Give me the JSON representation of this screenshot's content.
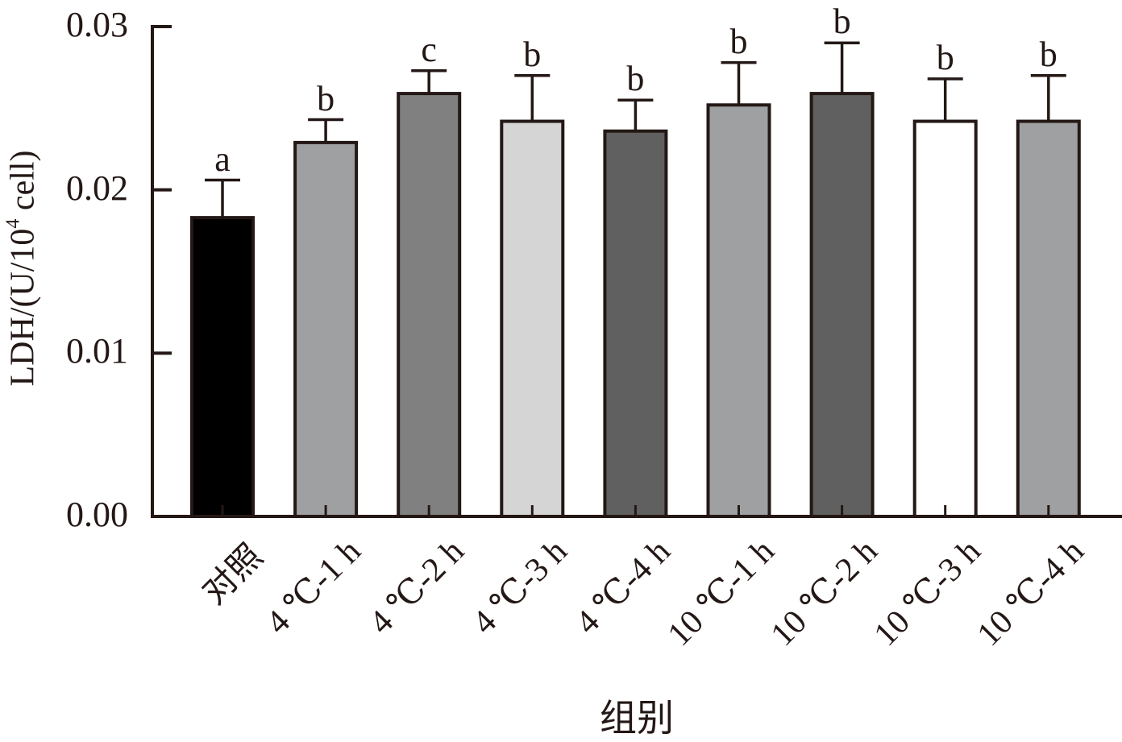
{
  "chart_data": {
    "type": "bar",
    "title": "",
    "xlabel": "组别",
    "ylabel": "LDH/(U/10^4 cell)",
    "ylabel_parts": {
      "prefix": "LDH/(U/10",
      "sup": "4",
      "suffix": " cell)"
    },
    "ylim": [
      0,
      0.03
    ],
    "yticks": [
      "0.00",
      "0.01",
      "0.02",
      "0.03"
    ],
    "grid": false,
    "legend": "none",
    "categories": [
      "对照",
      "4 ℃-1 h",
      "4 ℃-2 h",
      "4 ℃-3 h",
      "4 ℃-4 h",
      "10 ℃-1 h",
      "10 ℃-2 h",
      "10 ℃-3 h",
      "10 ℃-4 h"
    ],
    "values": [
      0.0183,
      0.0229,
      0.0259,
      0.0242,
      0.0236,
      0.0252,
      0.0259,
      0.0242,
      0.0242
    ],
    "error_upper": [
      0.0206,
      0.0243,
      0.0273,
      0.027,
      0.0255,
      0.0278,
      0.029,
      0.0268,
      0.027
    ],
    "significance_letters": [
      "a",
      "b",
      "c",
      "b",
      "b",
      "b",
      "b",
      "b",
      "b"
    ],
    "bar_colors": [
      "#000000",
      "#9fa0a2",
      "#7f807f",
      "#d4d5d4",
      "#5f605f",
      "#9fa0a2",
      "#5f605f",
      "#ffffff",
      "#9fa0a2"
    ]
  }
}
